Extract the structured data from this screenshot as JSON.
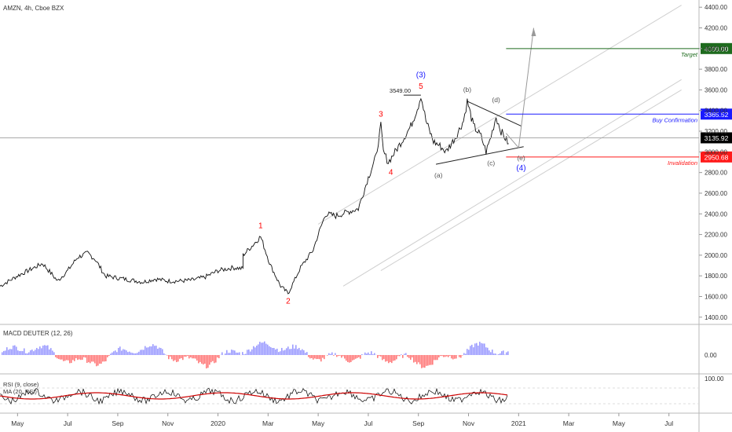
{
  "header": {
    "symbol_line": "AMZN, 4h, Cboe BZX"
  },
  "chart_data": [
    {
      "type": "line",
      "name": "AMZN price",
      "y_axis": {
        "ticks": [
          1400,
          1600,
          1800,
          2000,
          2200,
          2400,
          2600,
          2800,
          3000,
          3200,
          3400,
          3600,
          3800,
          4000,
          4200,
          4400
        ],
        "tick_labels": [
          "1400.00",
          "1600.00",
          "1800.00",
          "2000.00",
          "2200.00",
          "2400.00",
          "2600.00",
          "2800.00",
          "3000.00",
          "3200.00",
          "3400.00",
          "3600.00",
          "3800.00",
          "4000.00",
          "4200.00",
          "4400.00"
        ],
        "ylim": [
          1330,
          4470
        ]
      },
      "x_axis": {
        "labels": [
          "May",
          "Jul",
          "Sep",
          "Nov",
          "2020",
          "Mar",
          "May",
          "Jul",
          "Sep",
          "Nov",
          "2021",
          "Mar",
          "May",
          "Jul"
        ],
        "label_index": [
          0,
          2,
          4,
          6,
          8,
          10,
          12,
          14,
          16,
          18,
          20,
          22,
          24,
          26
        ],
        "xlim": [
          -0.7,
          27.2
        ]
      },
      "close_path": [
        [
          -0.7,
          1700
        ],
        [
          0,
          1800
        ],
        [
          1,
          1920
        ],
        [
          1.6,
          1750
        ],
        [
          2,
          1850
        ],
        [
          2.4,
          1980
        ],
        [
          2.8,
          2020
        ],
        [
          3.1,
          1960
        ],
        [
          3.5,
          1800
        ],
        [
          4,
          1780
        ],
        [
          4.5,
          1760
        ],
        [
          5,
          1740
        ],
        [
          5.5,
          1770
        ],
        [
          6,
          1750
        ],
        [
          6.5,
          1750
        ],
        [
          7,
          1760
        ],
        [
          7.5,
          1790
        ],
        [
          8,
          1850
        ],
        [
          8.6,
          1880
        ],
        [
          9,
          1870
        ],
        [
          9,
          2000
        ],
        [
          9.4,
          2100
        ],
        [
          9.7,
          2180
        ],
        [
          10.1,
          1900
        ],
        [
          10.5,
          1700
        ],
        [
          10.8,
          1630
        ],
        [
          11.3,
          1880
        ],
        [
          11.8,
          2050
        ],
        [
          12,
          2200
        ],
        [
          12.3,
          2400
        ],
        [
          12.7,
          2380
        ],
        [
          13.2,
          2420
        ],
        [
          13.6,
          2450
        ],
        [
          14,
          2750
        ],
        [
          14.3,
          2950
        ],
        [
          14.5,
          3250
        ],
        [
          14.6,
          3000
        ],
        [
          14.8,
          2900
        ],
        [
          15.2,
          3050
        ],
        [
          15.7,
          3250
        ],
        [
          16,
          3450
        ],
        [
          16.1,
          3549
        ],
        [
          16.3,
          3300
        ],
        [
          16.6,
          3100
        ],
        [
          16.9,
          3050
        ],
        [
          17.1,
          3000
        ],
        [
          17.5,
          3150
        ],
        [
          17.8,
          3300
        ],
        [
          17.95,
          3490
        ],
        [
          18.2,
          3250
        ],
        [
          18.5,
          3150
        ],
        [
          18.7,
          3000
        ],
        [
          18.9,
          3150
        ],
        [
          19.1,
          3340
        ],
        [
          19.3,
          3200
        ],
        [
          19.6,
          3080
        ]
      ],
      "annotations": {
        "price_label": "3549.00",
        "waves_red": [
          "1",
          "2",
          "3",
          "4",
          "5"
        ],
        "wave_blue_3": "(3)",
        "wave_blue_4": "(4)",
        "waves_gray": [
          "(a)",
          "(b)",
          "(c)",
          "(d)",
          "(e)"
        ]
      },
      "levels": [
        {
          "label": "Target",
          "price_text": "4000.00",
          "value": 4000,
          "color": "#1e6b1e"
        },
        {
          "label": "Buy Confirmation",
          "price_text": "3365.52",
          "value": 3365.52,
          "color": "#1a1aff"
        },
        {
          "label": "",
          "price_text": "3135.92",
          "value": 3135.92,
          "color": "#000000"
        },
        {
          "label": "Invalidation",
          "price_text": "2950.68",
          "value": 2950.68,
          "color": "#ff1a1a"
        }
      ],
      "grid": false
    },
    {
      "type": "bar",
      "name": "MACD DEUTER (12, 26)",
      "y_axis_labels": [
        "0.00"
      ],
      "positive_color": "#7b7bff",
      "negative_color": "#ff4d4d"
    },
    {
      "type": "line",
      "name": "RSI (9, close) / MA (20, RSI)",
      "y_axis_labels": [
        "100.00"
      ],
      "rsi_color": "#000000",
      "ma_color": "#cc0000"
    }
  ],
  "panels": {
    "macd_title": "MACD DEUTER (12, 26)",
    "rsi_title": "RSI (9, close)",
    "rsi_ma_title": "MA (20, RSI)"
  },
  "colors": {
    "red_wave": "#ff0000",
    "blue_wave": "#1a1aff",
    "gray_wave": "#555555"
  }
}
